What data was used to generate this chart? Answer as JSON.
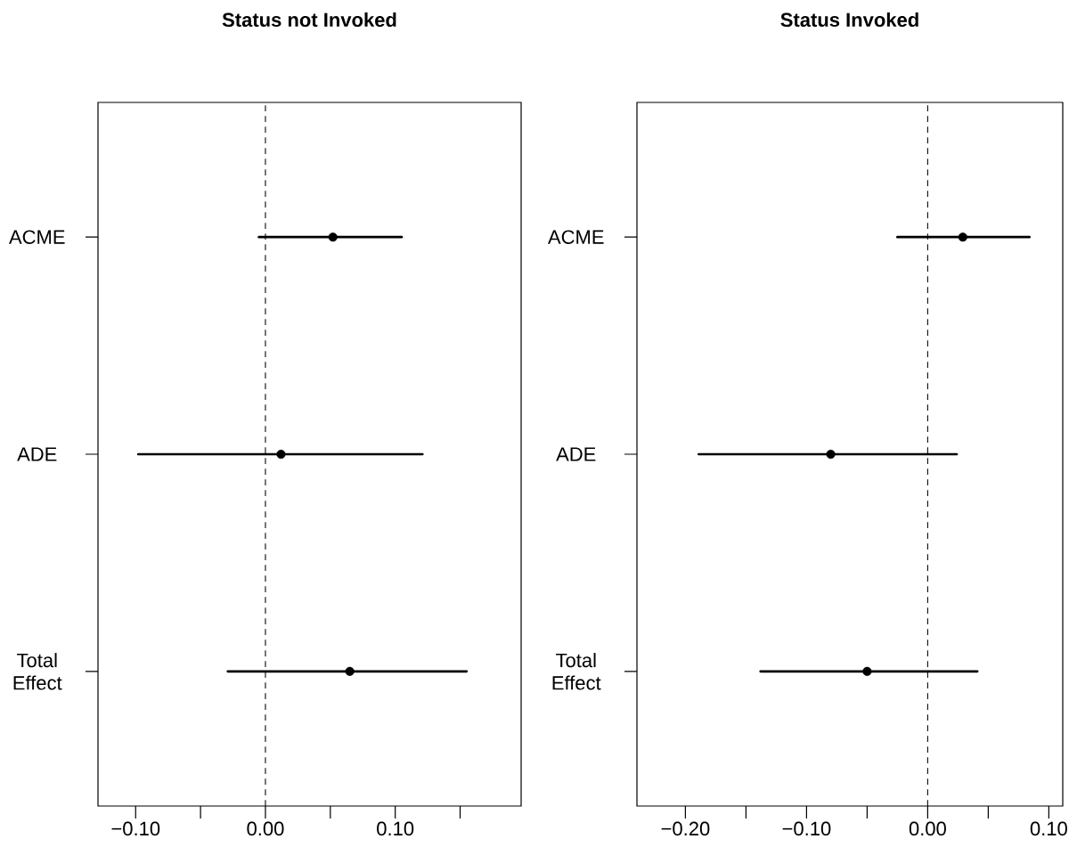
{
  "chart_data": [
    {
      "type": "scatter",
      "title": "Status not Invoked",
      "orientation": "horizontal",
      "categories": [
        "ACME",
        "ADE",
        "Total Effect"
      ],
      "values": [
        0.052,
        0.012,
        0.065
      ],
      "errors": [
        [
          -0.005,
          0.105
        ],
        [
          -0.098,
          0.121
        ],
        [
          -0.029,
          0.155
        ]
      ],
      "color": "#000000",
      "marker": "circle",
      "xlim": [
        -0.129,
        0.197
      ],
      "xticks": [
        {
          "value": -0.1,
          "label": "−0.10"
        },
        {
          "value": -0.05,
          "label": null
        },
        {
          "value": 0,
          "label": "0.00"
        },
        {
          "value": 0.05,
          "label": null
        },
        {
          "value": 0.1,
          "label": "0.10"
        },
        {
          "value": 0.15,
          "label": null
        }
      ],
      "ref_lines": [
        {
          "axis": "x",
          "value": 0,
          "line_style": "dashed"
        }
      ]
    },
    {
      "type": "scatter",
      "title": "Status Invoked",
      "orientation": "horizontal",
      "categories": [
        "ACME",
        "ADE",
        "Total Effect"
      ],
      "values": [
        0.029,
        -0.08,
        -0.05
      ],
      "errors": [
        [
          -0.025,
          0.084
        ],
        [
          -0.189,
          0.024
        ],
        [
          -0.138,
          0.041
        ]
      ],
      "color": "#000000",
      "marker": "circle",
      "xlim": [
        -0.24,
        0.1115
      ],
      "xticks": [
        {
          "value": -0.2,
          "label": "−0.20"
        },
        {
          "value": -0.15,
          "label": null
        },
        {
          "value": -0.1,
          "label": "−0.10"
        },
        {
          "value": -0.05,
          "label": null
        },
        {
          "value": 0,
          "label": "0.00"
        },
        {
          "value": 0.05,
          "label": null
        },
        {
          "value": 0.1,
          "label": "0.10"
        }
      ],
      "ref_lines": [
        {
          "axis": "x",
          "value": 0,
          "line_style": "dashed"
        }
      ]
    }
  ]
}
